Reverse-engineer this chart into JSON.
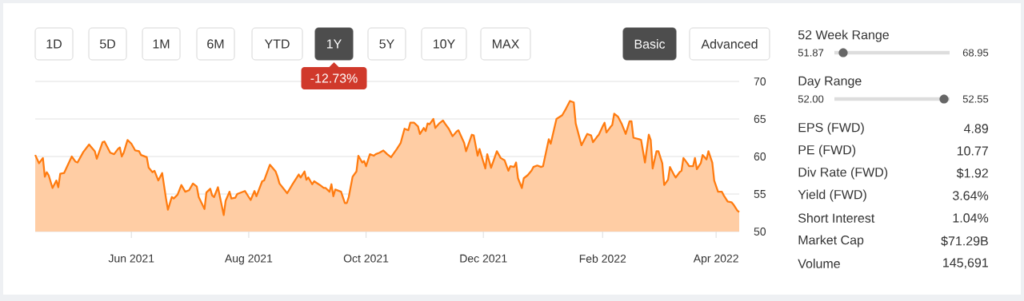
{
  "chart_data": [
    {
      "type": "area",
      "x": [
        "2021-04-12",
        "2021-04-14",
        "2021-04-16",
        "2021-04-17",
        "2021-04-18",
        "2021-04-19",
        "2021-04-21",
        "2021-04-23",
        "2021-04-24",
        "2021-04-25",
        "2021-04-27",
        "2021-05-01",
        "2021-05-03",
        "2021-05-04",
        "2021-05-07",
        "2021-05-10",
        "2021-05-13",
        "2021-05-14",
        "2021-05-17",
        "2021-05-18",
        "2021-05-21",
        "2021-05-23",
        "2021-05-25",
        "2021-05-26",
        "2021-05-27",
        "2021-05-28",
        "2021-05-30",
        "2021-06-01",
        "2021-06-03",
        "2021-06-05",
        "2021-06-06",
        "2021-06-09",
        "2021-06-10",
        "2021-06-12",
        "2021-06-13",
        "2021-06-15",
        "2021-06-17",
        "2021-06-19",
        "2021-06-20",
        "2021-06-22",
        "2021-06-23",
        "2021-06-25",
        "2021-06-27",
        "2021-06-29",
        "2021-07-01",
        "2021-07-03",
        "2021-07-05",
        "2021-07-06",
        "2021-07-09",
        "2021-07-10",
        "2021-07-12",
        "2021-07-13",
        "2021-07-14",
        "2021-07-16",
        "2021-07-19",
        "2021-07-20",
        "2021-07-22",
        "2021-07-23",
        "2021-07-25",
        "2021-07-26",
        "2021-07-30",
        "2021-08-01",
        "2021-08-02",
        "2021-08-04",
        "2021-08-05",
        "2021-08-08",
        "2021-08-09",
        "2021-08-12",
        "2021-08-15",
        "2021-08-16",
        "2021-08-17",
        "2021-08-21",
        "2021-08-24",
        "2021-08-27",
        "2021-08-28",
        "2021-08-30",
        "2021-08-31",
        "2021-09-01",
        "2021-09-03",
        "2021-09-04",
        "2021-09-07",
        "2021-09-09",
        "2021-09-10",
        "2021-09-12",
        "2021-09-13",
        "2021-09-14",
        "2021-09-15",
        "2021-09-18",
        "2021-09-20",
        "2021-09-21",
        "2021-09-22",
        "2021-09-24",
        "2021-09-26",
        "2021-09-27",
        "2021-09-29",
        "2021-09-30",
        "2021-10-01",
        "2021-10-03",
        "2021-10-05",
        "2021-10-06",
        "2021-10-08",
        "2021-10-10",
        "2021-10-12",
        "2021-10-14",
        "2021-10-17",
        "2021-10-19",
        "2021-10-21",
        "2021-10-23",
        "2021-10-24",
        "2021-10-26",
        "2021-10-28",
        "2021-10-29",
        "2021-10-31",
        "2021-11-01",
        "2021-11-02",
        "2021-11-03",
        "2021-11-05",
        "2021-11-06",
        "2021-11-08",
        "2021-11-10",
        "2021-11-11",
        "2021-11-13",
        "2021-11-15",
        "2021-11-17",
        "2021-11-18",
        "2021-11-21",
        "2021-11-22",
        "2021-11-25",
        "2021-11-26",
        "2021-11-28",
        "2021-11-29",
        "2021-12-02",
        "2021-12-03",
        "2021-12-05",
        "2021-12-08",
        "2021-12-10",
        "2021-12-12",
        "2021-12-14",
        "2021-12-15",
        "2021-12-17",
        "2021-12-18",
        "2021-12-19",
        "2021-12-21",
        "2021-12-22",
        "2021-12-24",
        "2021-12-26",
        "2021-12-27",
        "2021-12-29",
        "2021-12-31",
        "2022-01-01",
        "2022-01-04",
        "2022-01-05",
        "2022-01-07",
        "2022-01-08",
        "2022-01-11",
        "2022-01-13",
        "2022-01-15",
        "2022-01-17",
        "2022-01-18",
        "2022-01-21",
        "2022-01-24",
        "2022-01-26",
        "2022-01-27",
        "2022-01-29",
        "2022-01-30",
        "2022-02-01",
        "2022-02-02",
        "2022-02-03",
        "2022-02-05",
        "2022-02-06",
        "2022-02-07",
        "2022-02-09",
        "2022-02-11",
        "2022-02-13",
        "2022-02-15",
        "2022-02-16",
        "2022-02-17",
        "2022-02-20",
        "2022-02-21",
        "2022-02-23",
        "2022-02-25",
        "2022-02-26",
        "2022-02-27",
        "2022-03-01",
        "2022-03-02",
        "2022-03-04",
        "2022-03-05",
        "2022-03-07",
        "2022-03-08",
        "2022-03-10",
        "2022-03-11",
        "2022-03-13",
        "2022-03-14",
        "2022-03-15",
        "2022-03-17",
        "2022-03-18",
        "2022-03-20",
        "2022-03-21",
        "2022-03-22",
        "2022-03-24",
        "2022-03-25",
        "2022-03-27",
        "2022-03-28",
        "2022-03-30",
        "2022-03-31",
        "2022-04-02",
        "2022-04-04",
        "2022-04-05",
        "2022-04-07",
        "2022-04-09",
        "2022-04-10",
        "2022-04-12",
        "2022-04-13"
      ],
      "series": [
        {
          "color": "#ff7b0f",
          "values": [
            60.2,
            59.1,
            59.8,
            57.3,
            57.9,
            57.5,
            55.8,
            56.8,
            55.9,
            57.7,
            57.8,
            60.0,
            59.3,
            59.2,
            60.6,
            61.6,
            60.7,
            59.7,
            61.9,
            62.0,
            60.5,
            60.3,
            61.0,
            61.2,
            60.0,
            60.5,
            62.2,
            61.7,
            60.8,
            60.7,
            60.2,
            59.9,
            58.5,
            57.9,
            58.1,
            56.8,
            57.8,
            54.4,
            52.9,
            54.6,
            54.4,
            54.9,
            56.2,
            55.3,
            55.5,
            56.4,
            56.0,
            54.6,
            53.0,
            55.2,
            55.7,
            54.8,
            54.6,
            55.9,
            52.2,
            54.1,
            55.3,
            54.4,
            54.5,
            55.0,
            55.4,
            54.6,
            54.2,
            55.4,
            54.7,
            56.7,
            56.8,
            58.9,
            58.0,
            57.3,
            56.4,
            55.1,
            56.4,
            57.6,
            57.2,
            58.0,
            56.9,
            57.2,
            56.3,
            56.7,
            56.2,
            55.8,
            55.8,
            55.3,
            56.3,
            54.7,
            55.6,
            55.3,
            53.8,
            53.8,
            54.6,
            57.3,
            58.0,
            60.1,
            59.2,
            59.4,
            58.7,
            60.3,
            60.1,
            60.3,
            60.5,
            60.8,
            60.3,
            59.9,
            61.0,
            61.8,
            63.7,
            63.5,
            64.5,
            64.5,
            64.0,
            63.0,
            63.8,
            63.4,
            64.4,
            64.3,
            65.0,
            63.8,
            64.4,
            64.8,
            64.4,
            63.7,
            62.7,
            63.3,
            63.5,
            61.8,
            60.7,
            62.9,
            62.8,
            60.1,
            61.0,
            58.4,
            60.3,
            58.5,
            60.7,
            59.8,
            59.5,
            58.1,
            58.7,
            58.6,
            59.2,
            57.1,
            55.8,
            57.1,
            57.5,
            58.1,
            58.6,
            58.8,
            58.6,
            58.7,
            62.3,
            61.7,
            63.9,
            65.0,
            65.5,
            66.4,
            67.4,
            67.2,
            64.4,
            61.5,
            63.0,
            62.8,
            61.9,
            62.6,
            62.9,
            64.0,
            64.5,
            63.2,
            63.9,
            64.2,
            65.7,
            65.3,
            64.3,
            63.0,
            64.7,
            64.7,
            62.5,
            62.3,
            62.2,
            59.2,
            62.9,
            62.2,
            58.4,
            60.7,
            60.7,
            59.1,
            56.2,
            56.9,
            58.6,
            57.6,
            57.2,
            57.9,
            58.1,
            59.8,
            59.1,
            58.7,
            58.7,
            59.8,
            58.3,
            59.1,
            60.2,
            59.6,
            60.7,
            59.2,
            56.8,
            55.3,
            55.3,
            54.8,
            54.0,
            53.9,
            53.6,
            52.8,
            52.6
          ]
        }
      ],
      "xlim": [
        "2021-04-12",
        "2022-04-13"
      ],
      "xticks": [
        {
          "value": "2021-06-01",
          "label": "Jun 2021"
        },
        {
          "value": "2021-08-01",
          "label": "Aug 2021"
        },
        {
          "value": "2021-10-01",
          "label": "Oct 2021"
        },
        {
          "value": "2021-12-01",
          "label": "Dec 2021"
        },
        {
          "value": "2022-02-01",
          "label": "Feb 2022"
        },
        {
          "value": "2022-04-01",
          "label": "Apr 2022"
        }
      ],
      "ylim": [
        50,
        70
      ],
      "yticks": [
        50,
        55,
        60,
        65,
        70
      ],
      "grid": "y",
      "marker": "none",
      "line_style": "solid",
      "annotations": [
        "1D",
        "5D",
        "1M",
        "6M",
        "YTD",
        "1Y",
        "5Y",
        "10Y",
        "MAX",
        "Basic",
        "Advanced",
        "-12.73%"
      ]
    },
    {
      "type": "other",
      "annotations": [
        "52 Week Range",
        "51.87",
        "68.95",
        "Day Range",
        "52.00",
        "52.55",
        "EPS (FWD)",
        "4.89",
        "PE (FWD)",
        "10.77",
        "Div Rate (FWD)",
        "$1.92",
        "Yield (FWD)",
        "3.64%",
        "Short Interest",
        "1.04%",
        "Market Cap",
        "$71.29B",
        "Volume",
        "145,691"
      ]
    }
  ]
}
